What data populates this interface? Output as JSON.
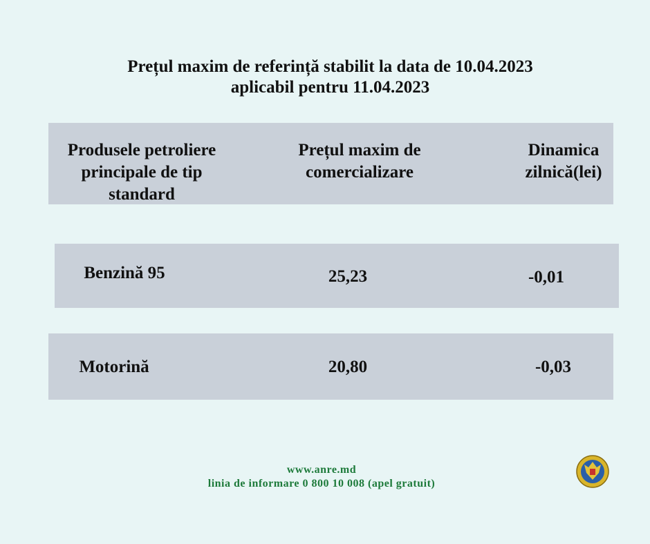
{
  "title": {
    "line1": "Prețul maxim de referință stabilit la data de 10.04.2023",
    "line2": "aplicabil pentru 11.04.2023"
  },
  "table": {
    "headers": [
      {
        "line1": "Produsele petroliere",
        "line2": "principale de tip",
        "line3": "standard"
      },
      {
        "line1": "Prețul maxim de",
        "line2": "comercializare"
      },
      {
        "line1": "Dinamica",
        "line2": "zilnică(lei)"
      }
    ],
    "rows": [
      {
        "product": "Benzină 95",
        "price": "25,23",
        "change": "-0,01"
      },
      {
        "product": "Motorină",
        "price": "20,80",
        "change": "-0,03"
      }
    ]
  },
  "footer": {
    "website": "www.anre.md",
    "hotline": "linia de informare 0 800 10 008 (apel gratuit)"
  },
  "colors": {
    "background": "#e8f5f5",
    "row": "#c9d0d9",
    "footer_text": "#1d7a3a"
  },
  "logo": {
    "icon": "coat-of-arms-seal-icon"
  }
}
